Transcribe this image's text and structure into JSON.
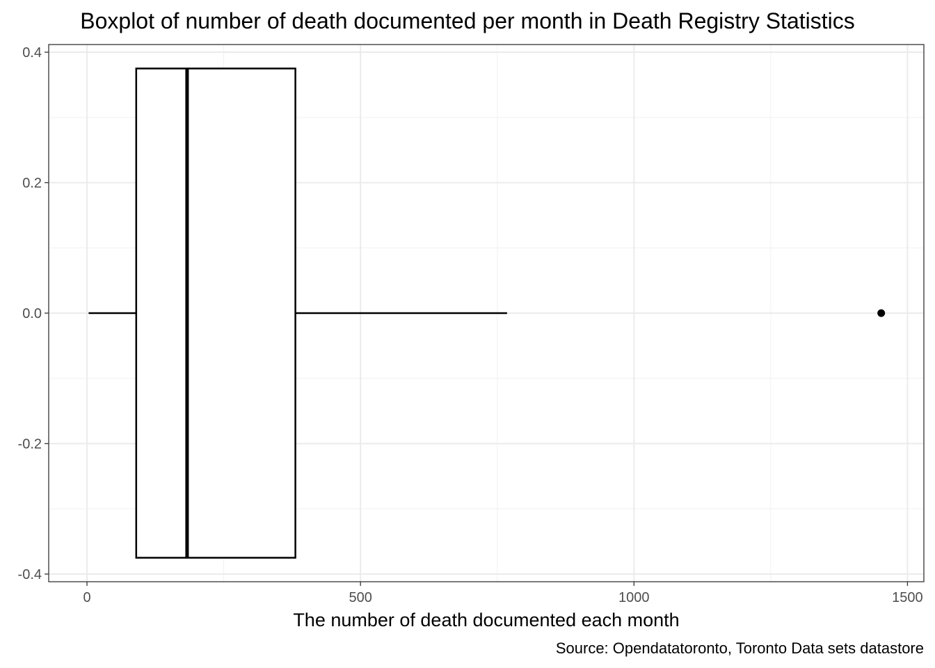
{
  "chart_data": {
    "type": "boxplot",
    "title": "Boxplot of number of death documented per month in Death Registry Statistics",
    "xlabel": "The number of death documented each month",
    "ylabel": "",
    "caption": "Source: Opendatatoronto, Toronto Data sets datastore",
    "orientation": "horizontal",
    "xlim": [
      -70,
      1530
    ],
    "ylim": [
      -0.4,
      0.4
    ],
    "x_ticks": [
      0,
      500,
      1000,
      1500
    ],
    "x_tick_labels": [
      "0",
      "500",
      "1000",
      "1500"
    ],
    "y_ticks": [
      0.4,
      0.2,
      0.0,
      -0.2,
      -0.4
    ],
    "y_tick_labels": [
      "0.4",
      "0.2",
      "0.0",
      "-0.2",
      "-0.4"
    ],
    "grid": true,
    "box": {
      "whisker_low": 3,
      "q1": 90,
      "median": 183,
      "q3": 381,
      "whisker_high": 768,
      "y_center": 0.0,
      "y_half_width": 0.375
    },
    "outliers": [
      1452
    ]
  }
}
